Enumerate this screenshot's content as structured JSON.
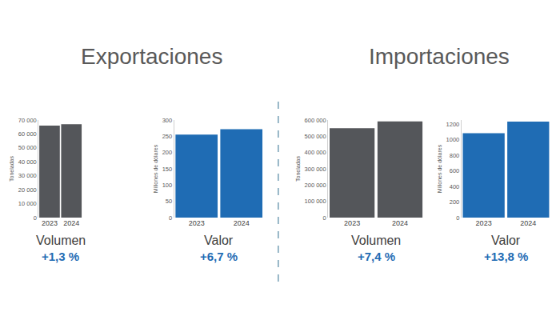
{
  "section_titles": [
    "Exportaciones",
    "Importaciones"
  ],
  "chart_data": [
    {
      "type": "bar",
      "categories": [
        "2023",
        "2024"
      ],
      "values": [
        66000,
        67000
      ],
      "color": "#54565a",
      "y_label": "Toneladas",
      "x_label": "Volumen",
      "annotation": "+1,3 %",
      "grid": false,
      "ylim": [
        0,
        70000
      ],
      "yticks": [
        0,
        {
          "value": 10000,
          "label": "10 000"
        },
        {
          "value": 20000,
          "label": "20 000"
        },
        {
          "value": 30000,
          "label": "30 000"
        },
        {
          "value": 40000,
          "label": "40 000"
        },
        {
          "value": 50000,
          "label": "50 000"
        },
        {
          "value": 60000,
          "label": "60 000"
        },
        {
          "value": 70000,
          "label": "70 000"
        }
      ]
    },
    {
      "type": "bar",
      "categories": [
        "2023",
        "2024"
      ],
      "values": [
        255,
        272
      ],
      "color": "#1f6cb4",
      "y_label": "Millones de dólares",
      "x_label": "Valor",
      "annotation": "+6,7 %",
      "grid": false,
      "ylim": [
        0,
        300
      ],
      "yticks": [
        0,
        50,
        100,
        150,
        200,
        250,
        300
      ]
    },
    {
      "type": "bar",
      "categories": [
        "2023",
        "2024"
      ],
      "values": [
        550000,
        591000
      ],
      "color": "#54565a",
      "y_label": "Toneladas",
      "x_label": "Volumen",
      "annotation": "+7,4 %",
      "grid": false,
      "ylim": [
        0,
        600000
      ],
      "yticks": [
        0,
        {
          "value": 100000,
          "label": "100 000"
        },
        {
          "value": 200000,
          "label": "200 000"
        },
        {
          "value": 300000,
          "label": "300 000"
        },
        {
          "value": 400000,
          "label": "400 000"
        },
        {
          "value": 500000,
          "label": "500 000"
        },
        {
          "value": 600000,
          "label": "600 000"
        }
      ]
    },
    {
      "type": "bar",
      "categories": [
        "2023",
        "2024"
      ],
      "values": [
        1080,
        1229
      ],
      "color": "#1f6cb4",
      "y_label": "Millones de dólares",
      "x_label": "Valor",
      "annotation": "+13,8 %",
      "grid": false,
      "ylim": [
        0,
        1250
      ],
      "yticks": [
        0,
        200,
        400,
        600,
        800,
        1000,
        1200
      ]
    }
  ]
}
